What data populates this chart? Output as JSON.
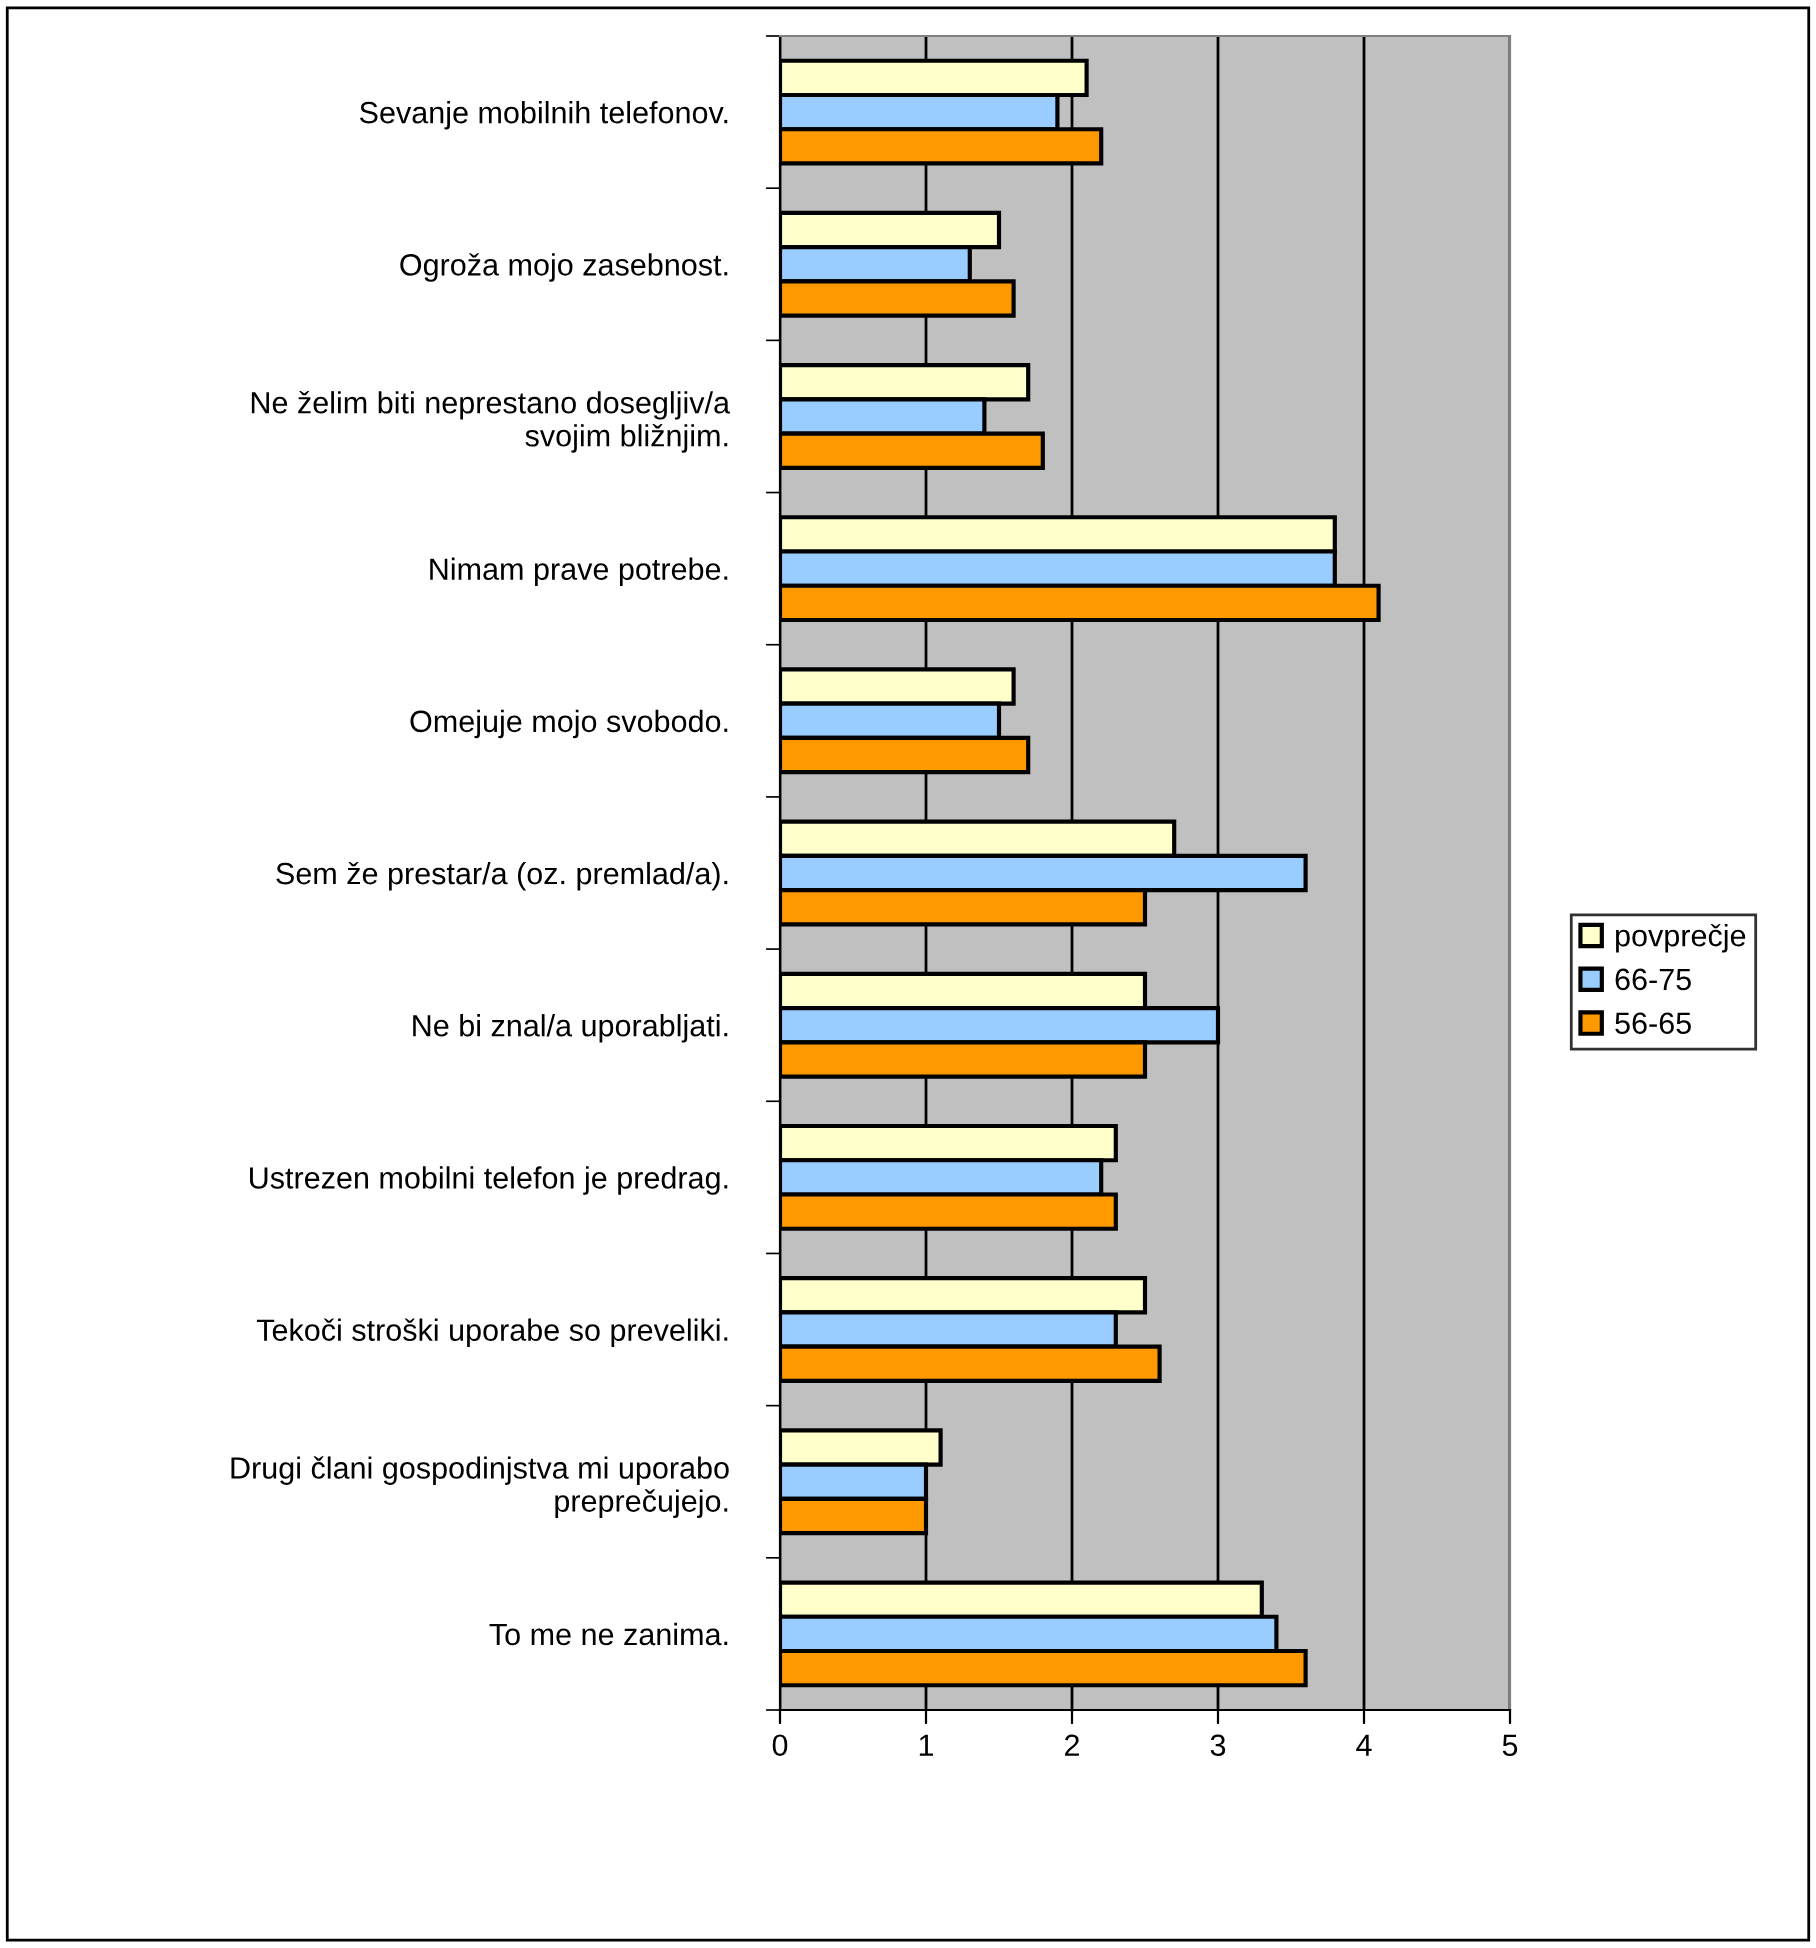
{
  "chart_data": {
    "type": "bar",
    "orientation": "horizontal",
    "categories": [
      "Sevanje mobilnih telefonov.",
      "Ogroža mojo zasebnost.",
      "Ne želim biti neprestano dosegljiv/a\nsvojim bližnjim.",
      "Nimam prave potrebe.",
      "Omejuje mojo svobodo.",
      "Sem že prestar/a (oz. premlad/a).",
      "Ne bi znal/a uporabljati.",
      "Ustrezen mobilni telefon je predrag.",
      "Tekoči stroški uporabe so preveliki.",
      "Drugi člani gospodinjstva mi uporabo\npreprečujejo.",
      "To me ne zanima."
    ],
    "series": [
      {
        "name": "povprečje",
        "color": "#ffffcc",
        "values": [
          2.1,
          1.5,
          1.7,
          3.8,
          1.6,
          2.7,
          2.5,
          2.3,
          2.5,
          1.1,
          3.3
        ]
      },
      {
        "name": "66-75",
        "color": "#99ccff",
        "values": [
          1.9,
          1.3,
          1.4,
          3.8,
          1.5,
          3.6,
          3.0,
          2.2,
          2.3,
          1.0,
          3.4
        ]
      },
      {
        "name": "56-65",
        "color": "#ff9900",
        "values": [
          2.2,
          1.6,
          1.8,
          4.1,
          1.7,
          2.5,
          2.5,
          2.3,
          2.6,
          1.0,
          3.6
        ]
      }
    ],
    "xlim": [
      0,
      5
    ],
    "xticks": [
      0,
      1,
      2,
      3,
      4,
      5
    ],
    "grid": "x",
    "legend": "right"
  }
}
